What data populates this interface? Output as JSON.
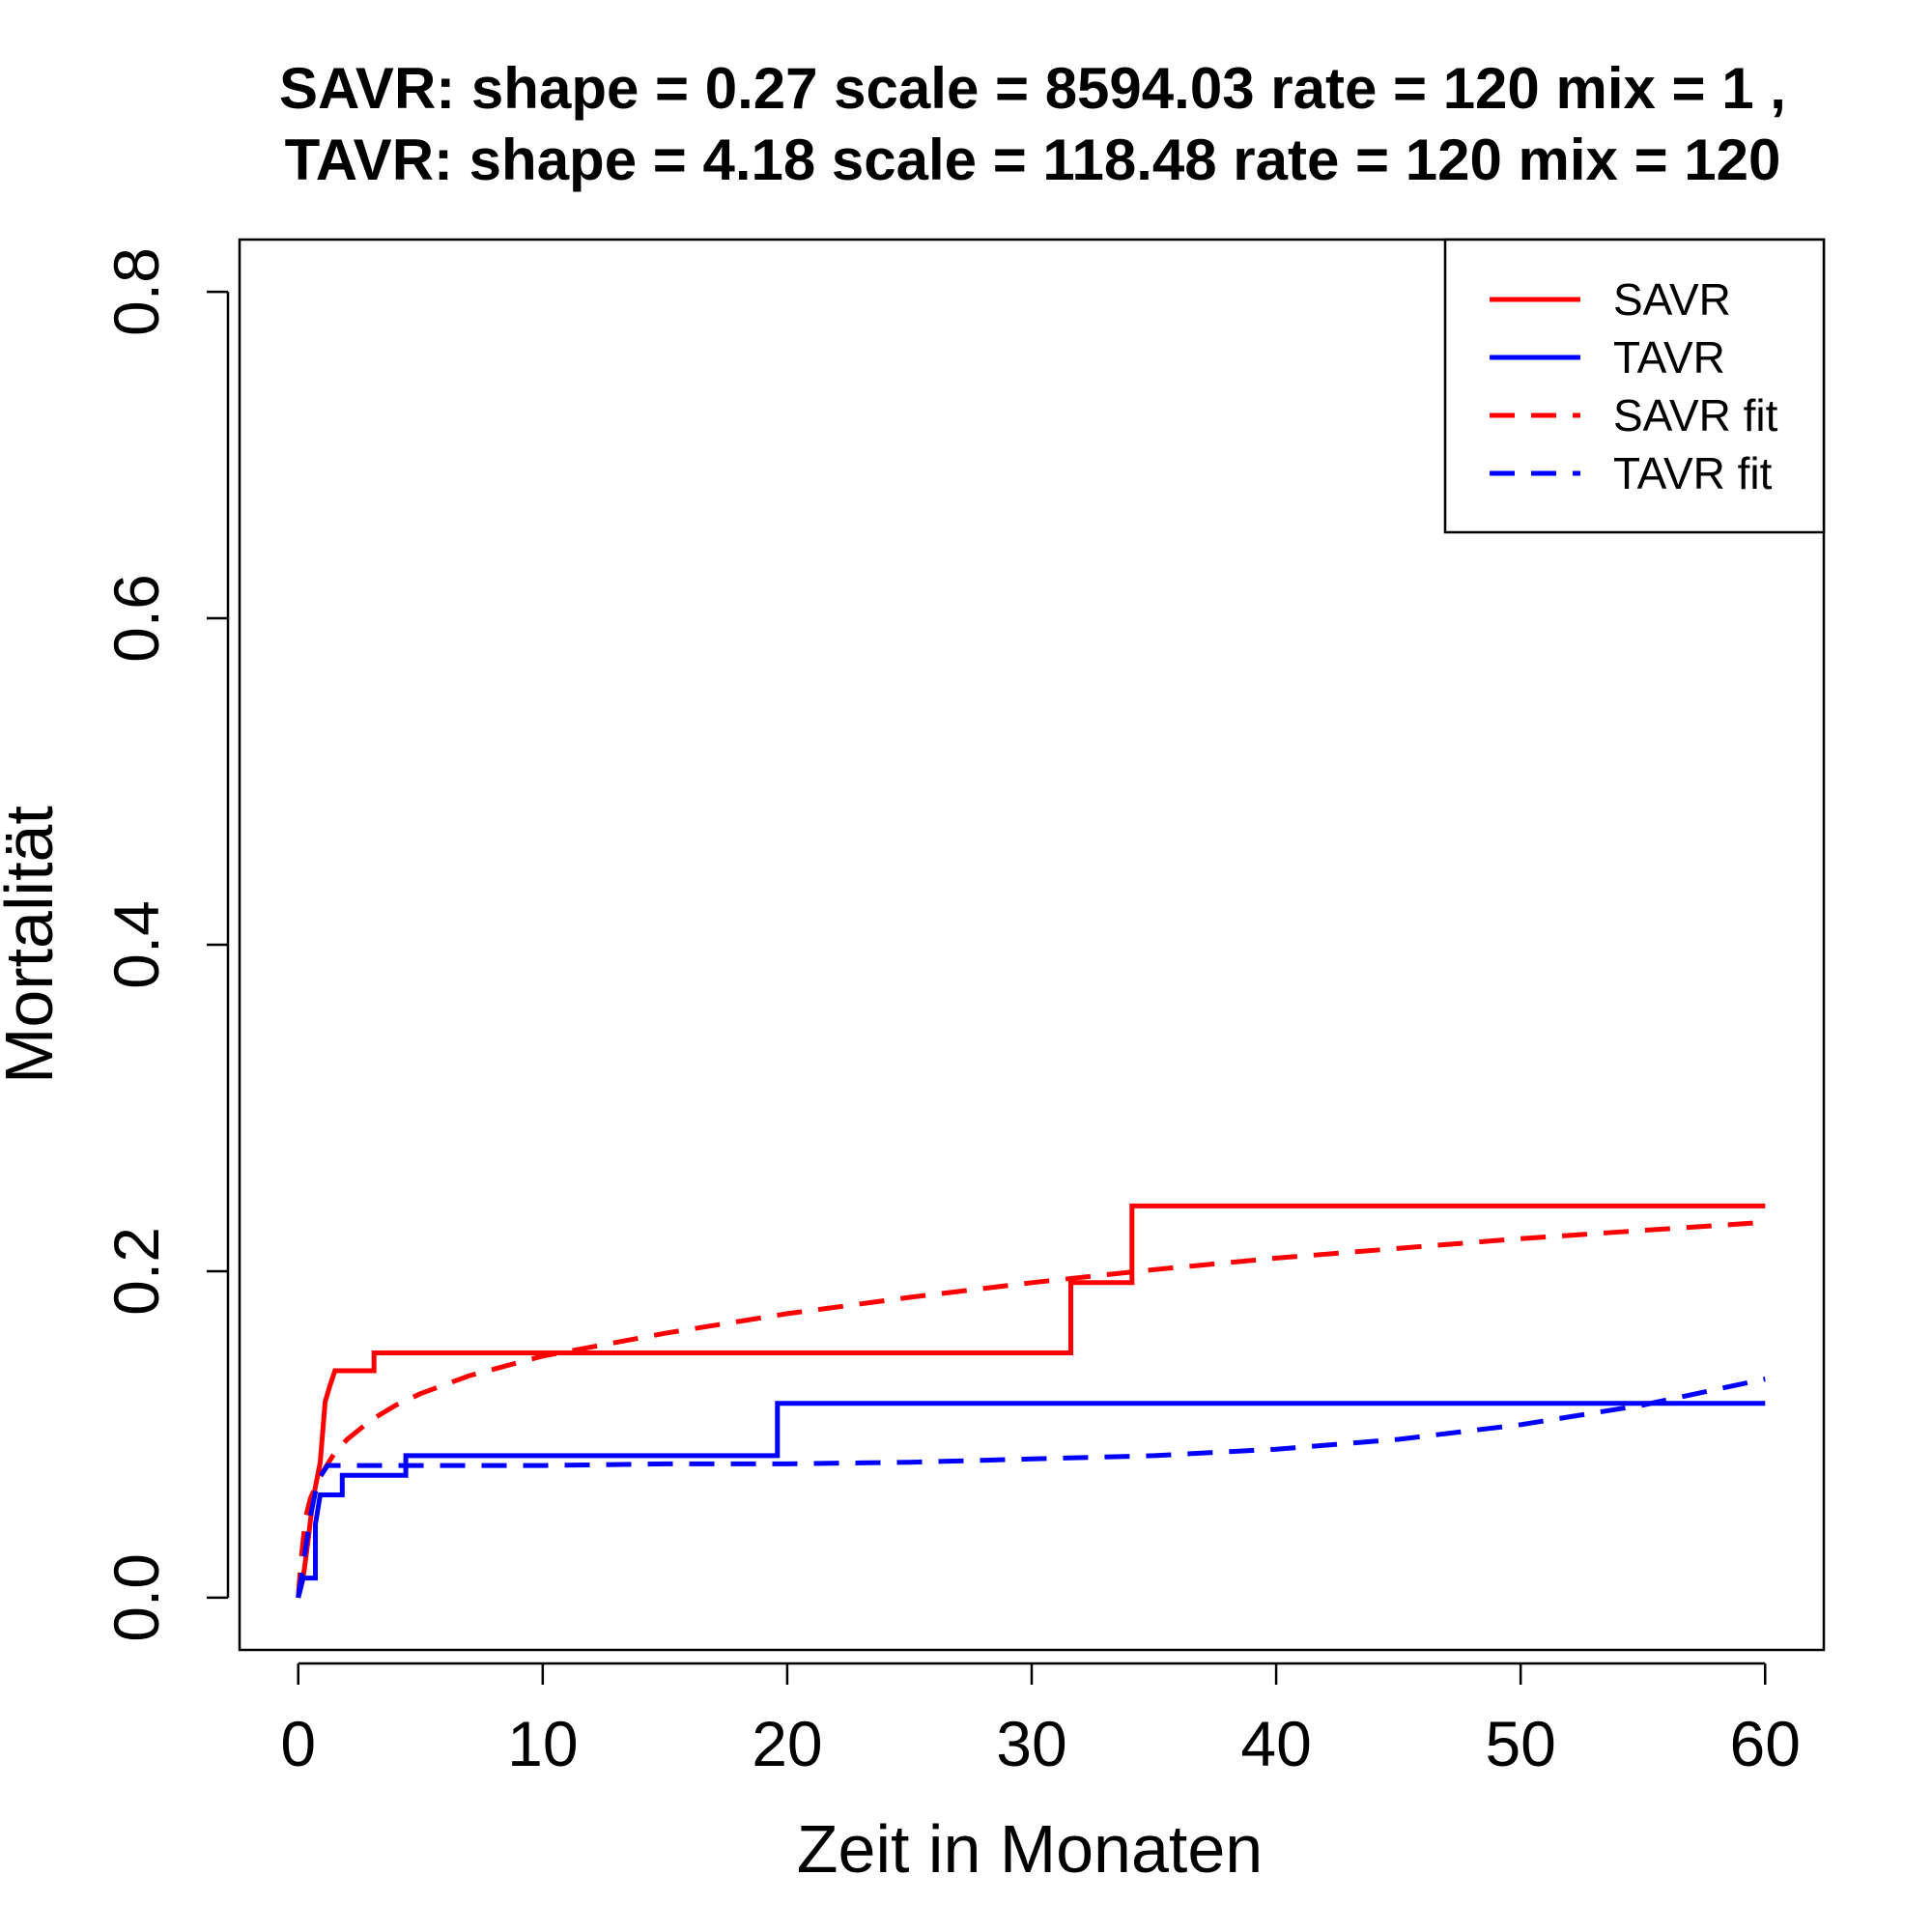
{
  "chart_data": {
    "type": "line",
    "title_lines": [
      "SAVR:  shape =  0.27   scale =  8594.03   rate =  120   mix =  1 ,",
      "TAVR:  shape =  4.18   scale =  118.48   rate =  120   mix =  120"
    ],
    "xlabel": "Zeit in Monaten",
    "ylabel": "Mortalität",
    "xlim": [
      -2.4,
      62.4
    ],
    "ylim": [
      -0.032,
      0.832
    ],
    "xticks": [
      0,
      10,
      20,
      30,
      40,
      50,
      60
    ],
    "xtick_labels": [
      "0",
      "10",
      "20",
      "30",
      "40",
      "50",
      "60"
    ],
    "yticks": [
      0.0,
      0.2,
      0.4,
      0.6,
      0.8
    ],
    "ytick_labels": [
      "0.0",
      "0.2",
      "0.4",
      "0.6",
      "0.8"
    ],
    "grid": false,
    "legend_position": "top-right",
    "series": [
      {
        "name": "SAVR",
        "style": "step",
        "dash": "solid",
        "color": "#ff0000",
        "points": [
          [
            0,
            0
          ],
          [
            0.2,
            0.012
          ],
          [
            0.4,
            0.035
          ],
          [
            0.6,
            0.06
          ],
          [
            0.9,
            0.083
          ],
          [
            1.1,
            0.12
          ],
          [
            1.3,
            0.13
          ],
          [
            1.5,
            0.139
          ],
          [
            3.1,
            0.139
          ],
          [
            3.1,
            0.15
          ],
          [
            31.6,
            0.15
          ],
          [
            31.6,
            0.193
          ],
          [
            34.1,
            0.193
          ],
          [
            34.1,
            0.24
          ],
          [
            60,
            0.24
          ]
        ]
      },
      {
        "name": "TAVR",
        "style": "step",
        "dash": "solid",
        "color": "#0000ff",
        "points": [
          [
            0,
            0
          ],
          [
            0.2,
            0.012
          ],
          [
            0.7,
            0.012
          ],
          [
            0.7,
            0.045
          ],
          [
            0.9,
            0.063
          ],
          [
            1.1,
            0.063
          ],
          [
            1.1,
            0.063
          ],
          [
            1.8,
            0.063
          ],
          [
            1.8,
            0.075
          ],
          [
            4.4,
            0.075
          ],
          [
            4.4,
            0.087
          ],
          [
            19.6,
            0.087
          ],
          [
            19.6,
            0.119
          ],
          [
            60,
            0.119
          ]
        ]
      },
      {
        "name": "SAVR fit",
        "style": "curve",
        "dash": "dashed",
        "color": "#ff0000",
        "points": [
          [
            0,
            0
          ],
          [
            0.1,
            0.021
          ],
          [
            0.3,
            0.049
          ],
          [
            0.5,
            0.061
          ],
          [
            1,
            0.077
          ],
          [
            1.5,
            0.089
          ],
          [
            2,
            0.097
          ],
          [
            3,
            0.109
          ],
          [
            4,
            0.118
          ],
          [
            5,
            0.125
          ],
          [
            7,
            0.136
          ],
          [
            10,
            0.148
          ],
          [
            15,
            0.162
          ],
          [
            20,
            0.174
          ],
          [
            25,
            0.184
          ],
          [
            30,
            0.193
          ],
          [
            35,
            0.201
          ],
          [
            40,
            0.208
          ],
          [
            45,
            0.214
          ],
          [
            50,
            0.22
          ],
          [
            55,
            0.225
          ],
          [
            60,
            0.23
          ]
        ]
      },
      {
        "name": "TAVR fit",
        "style": "curve",
        "dash": "dashed",
        "color": "#0000ff",
        "points": [
          [
            0,
            0
          ],
          [
            0.2,
            0.02
          ],
          [
            0.5,
            0.05
          ],
          [
            0.8,
            0.072
          ],
          [
            1.2,
            0.081
          ],
          [
            5,
            0.081
          ],
          [
            10,
            0.081
          ],
          [
            15,
            0.082
          ],
          [
            20,
            0.082
          ],
          [
            25,
            0.083
          ],
          [
            30,
            0.085
          ],
          [
            35,
            0.087
          ],
          [
            40,
            0.091
          ],
          [
            45,
            0.097
          ],
          [
            50,
            0.106
          ],
          [
            55,
            0.118
          ],
          [
            60,
            0.134
          ]
        ]
      }
    ],
    "legend": {
      "entries": [
        {
          "label": "SAVR",
          "color": "#ff0000",
          "dash": "solid"
        },
        {
          "label": "TAVR",
          "color": "#0000ff",
          "dash": "solid"
        },
        {
          "label": "SAVR fit",
          "color": "#ff0000",
          "dash": "dashed"
        },
        {
          "label": "TAVR fit",
          "color": "#0000ff",
          "dash": "dashed"
        }
      ]
    }
  }
}
